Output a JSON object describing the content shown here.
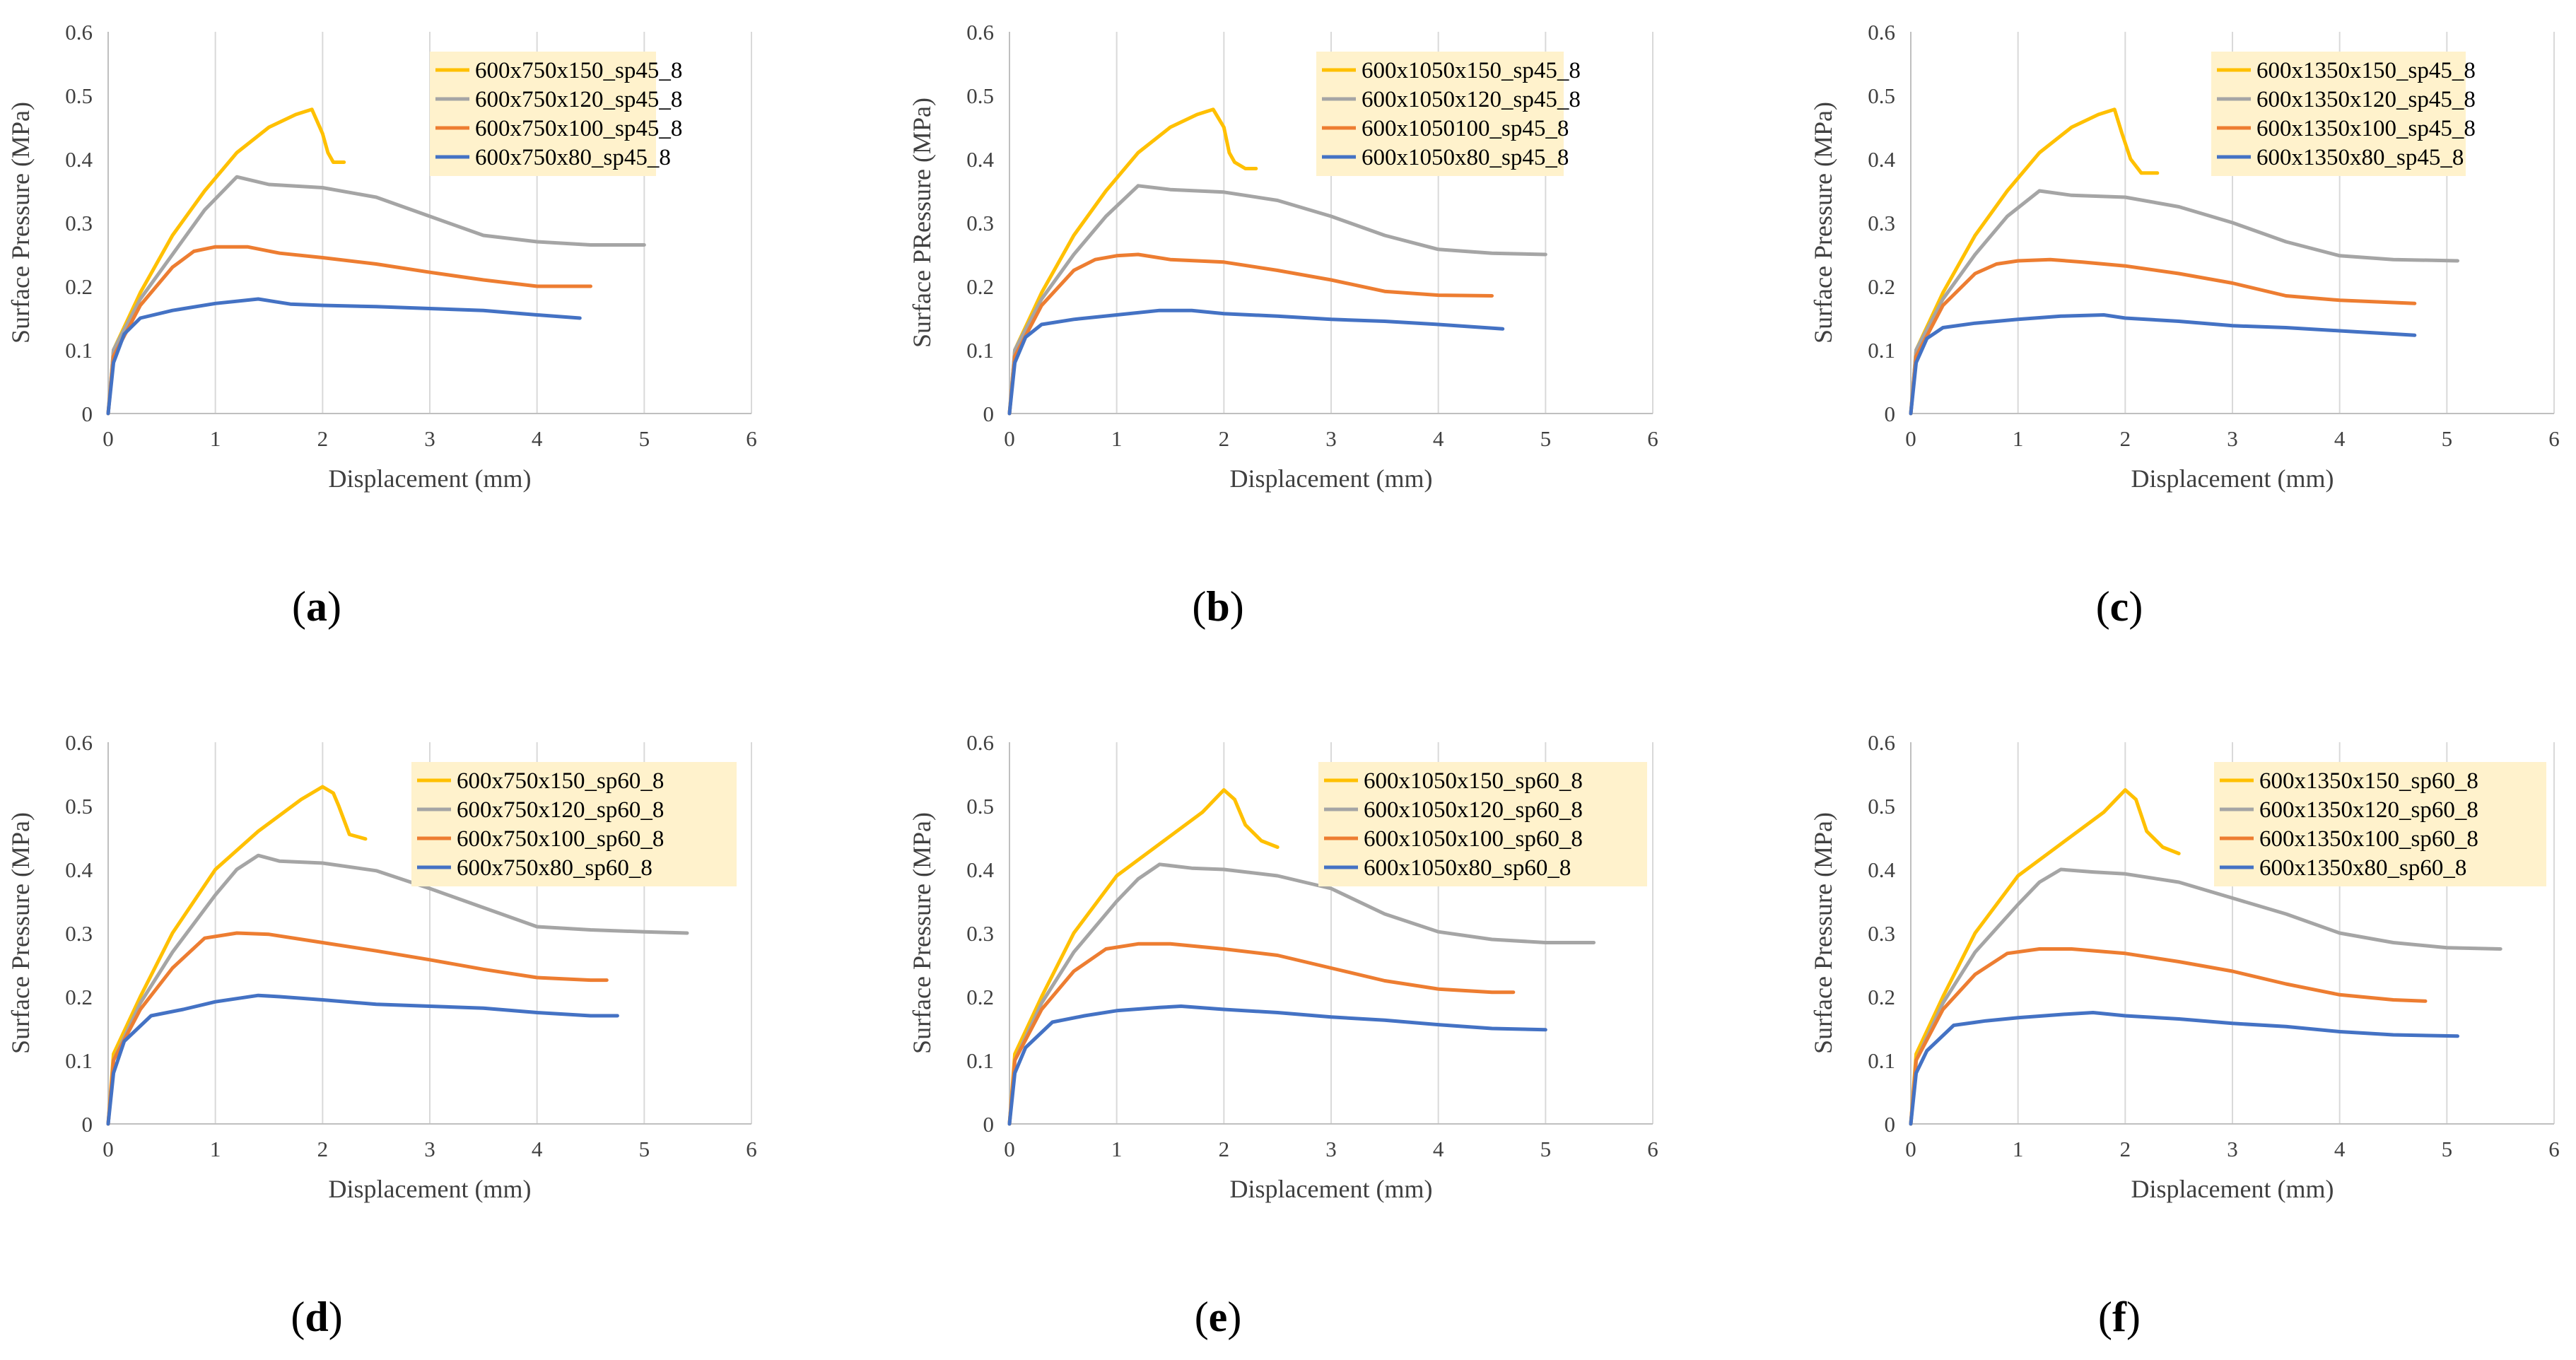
{
  "chart_data": [
    {
      "panel": "a",
      "type": "line",
      "xlabel": "Displacement (mm)",
      "ylabel": "Surface Pressure (MPa)",
      "xlim": [
        0,
        6
      ],
      "ylim": [
        0,
        0.6
      ],
      "xticks": [
        "0",
        "1",
        "2",
        "3",
        "4",
        "5",
        "6"
      ],
      "yticks": [
        "0",
        "0.1",
        "0.2",
        "0.3",
        "0.4",
        "0.5",
        "0.6"
      ],
      "grid": "vertical",
      "legend_position": "top-right",
      "series": [
        {
          "name": "600x750x150_sp45_8",
          "color": "#FFC000",
          "x": [
            0,
            0.05,
            0.3,
            0.6,
            0.9,
            1.2,
            1.5,
            1.75,
            1.9,
            2.0,
            2.05,
            2.1,
            2.2
          ],
          "y": [
            0,
            0.1,
            0.19,
            0.28,
            0.35,
            0.41,
            0.45,
            0.47,
            0.478,
            0.44,
            0.41,
            0.395,
            0.395
          ]
        },
        {
          "name": "600x750x120_sp45_8",
          "color": "#A5A5A5",
          "x": [
            0,
            0.05,
            0.3,
            0.6,
            0.9,
            1.2,
            1.5,
            2.0,
            2.5,
            3.0,
            3.5,
            4.0,
            4.5,
            5.0
          ],
          "y": [
            0,
            0.1,
            0.18,
            0.25,
            0.32,
            0.372,
            0.36,
            0.355,
            0.34,
            0.31,
            0.28,
            0.27,
            0.265,
            0.265
          ]
        },
        {
          "name": "600x750x100_sp45_8",
          "color": "#ED7D31",
          "x": [
            0,
            0.05,
            0.3,
            0.6,
            0.8,
            1.0,
            1.3,
            1.6,
            2.0,
            2.5,
            3.0,
            3.5,
            4.0,
            4.5
          ],
          "y": [
            0,
            0.09,
            0.17,
            0.23,
            0.255,
            0.262,
            0.262,
            0.252,
            0.245,
            0.235,
            0.222,
            0.21,
            0.2,
            0.2
          ]
        },
        {
          "name": "600x750x80_sp45_8",
          "color": "#4472C4",
          "x": [
            0,
            0.05,
            0.15,
            0.3,
            0.6,
            1.0,
            1.4,
            1.7,
            2.0,
            2.5,
            3.0,
            3.5,
            4.0,
            4.4
          ],
          "y": [
            0,
            0.08,
            0.125,
            0.15,
            0.162,
            0.173,
            0.18,
            0.172,
            0.17,
            0.168,
            0.165,
            0.162,
            0.155,
            0.15
          ]
        }
      ]
    },
    {
      "panel": "b",
      "type": "line",
      "xlabel": "Displacement (mm)",
      "ylabel": "Surface PRessure (MPa)",
      "xlim": [
        0,
        6
      ],
      "ylim": [
        0,
        0.6
      ],
      "xticks": [
        "0",
        "1",
        "2",
        "3",
        "4",
        "5",
        "6"
      ],
      "yticks": [
        "0",
        "0.1",
        "0.2",
        "0.3",
        "0.4",
        "0.5",
        "0.6"
      ],
      "grid": "vertical",
      "legend_position": "top-right",
      "series": [
        {
          "name": "600x1050x150_sp45_8",
          "color": "#FFC000",
          "x": [
            0,
            0.05,
            0.3,
            0.6,
            0.9,
            1.2,
            1.5,
            1.75,
            1.9,
            2.0,
            2.05,
            2.1,
            2.2,
            2.3
          ],
          "y": [
            0,
            0.1,
            0.19,
            0.28,
            0.35,
            0.41,
            0.45,
            0.47,
            0.478,
            0.45,
            0.41,
            0.395,
            0.385,
            0.385
          ]
        },
        {
          "name": "600x1050x120_sp45_8",
          "color": "#A5A5A5",
          "x": [
            0,
            0.05,
            0.3,
            0.6,
            0.9,
            1.2,
            1.5,
            2.0,
            2.5,
            3.0,
            3.5,
            4.0,
            4.5,
            5.0
          ],
          "y": [
            0,
            0.1,
            0.18,
            0.25,
            0.31,
            0.358,
            0.352,
            0.348,
            0.335,
            0.31,
            0.28,
            0.258,
            0.252,
            0.25
          ]
        },
        {
          "name": "600x1050100_sp45_8",
          "color": "#ED7D31",
          "x": [
            0,
            0.05,
            0.3,
            0.6,
            0.8,
            1.0,
            1.2,
            1.5,
            2.0,
            2.5,
            3.0,
            3.5,
            4.0,
            4.5
          ],
          "y": [
            0,
            0.09,
            0.17,
            0.225,
            0.242,
            0.248,
            0.25,
            0.242,
            0.238,
            0.225,
            0.21,
            0.192,
            0.186,
            0.185
          ]
        },
        {
          "name": "600x1050x80_sp45_8",
          "color": "#4472C4",
          "x": [
            0,
            0.05,
            0.15,
            0.3,
            0.6,
            1.0,
            1.4,
            1.7,
            2.0,
            2.5,
            3.0,
            3.5,
            4.0,
            4.6
          ],
          "y": [
            0,
            0.08,
            0.12,
            0.14,
            0.148,
            0.155,
            0.162,
            0.162,
            0.157,
            0.153,
            0.148,
            0.145,
            0.14,
            0.133
          ]
        }
      ]
    },
    {
      "panel": "c",
      "type": "line",
      "xlabel": "Displacement (mm)",
      "ylabel": "Surface Pressure (MPa)",
      "xlim": [
        0,
        6
      ],
      "ylim": [
        0,
        0.6
      ],
      "xticks": [
        "0",
        "1",
        "2",
        "3",
        "4",
        "5",
        "6"
      ],
      "yticks": [
        "0",
        "0.1",
        "0.2",
        "0.3",
        "0.4",
        "0.5",
        "0.6"
      ],
      "grid": "vertical",
      "legend_position": "top-right",
      "series": [
        {
          "name": "600x1350x150_sp45_8",
          "color": "#FFC000",
          "x": [
            0,
            0.05,
            0.3,
            0.6,
            0.9,
            1.2,
            1.5,
            1.75,
            1.9,
            1.97,
            2.05,
            2.15,
            2.3
          ],
          "y": [
            0,
            0.1,
            0.19,
            0.28,
            0.35,
            0.41,
            0.45,
            0.47,
            0.478,
            0.44,
            0.4,
            0.378,
            0.378
          ]
        },
        {
          "name": "600x1350x120_sp45_8",
          "color": "#A5A5A5",
          "x": [
            0,
            0.05,
            0.3,
            0.6,
            0.9,
            1.2,
            1.5,
            2.0,
            2.5,
            3.0,
            3.5,
            4.0,
            4.5,
            5.1
          ],
          "y": [
            0,
            0.1,
            0.18,
            0.25,
            0.31,
            0.35,
            0.343,
            0.34,
            0.325,
            0.3,
            0.27,
            0.248,
            0.242,
            0.24
          ]
        },
        {
          "name": "600x1350x100_sp45_8",
          "color": "#ED7D31",
          "x": [
            0,
            0.05,
            0.3,
            0.6,
            0.8,
            1.0,
            1.3,
            1.6,
            2.0,
            2.5,
            3.0,
            3.5,
            4.0,
            4.7
          ],
          "y": [
            0,
            0.09,
            0.17,
            0.22,
            0.235,
            0.24,
            0.242,
            0.238,
            0.232,
            0.22,
            0.205,
            0.185,
            0.178,
            0.173
          ]
        },
        {
          "name": "600x1350x80_sp45_8",
          "color": "#4472C4",
          "x": [
            0,
            0.05,
            0.15,
            0.3,
            0.6,
            1.0,
            1.4,
            1.8,
            2.0,
            2.5,
            3.0,
            3.5,
            4.0,
            4.7
          ],
          "y": [
            0,
            0.08,
            0.118,
            0.135,
            0.142,
            0.148,
            0.153,
            0.155,
            0.15,
            0.145,
            0.138,
            0.135,
            0.13,
            0.123
          ]
        }
      ]
    },
    {
      "panel": "d",
      "type": "line",
      "xlabel": "Displacement (mm)",
      "ylabel": "Surface Pressure (MPa)",
      "xlim": [
        0,
        6
      ],
      "ylim": [
        0,
        0.6
      ],
      "xticks": [
        "0",
        "1",
        "2",
        "3",
        "4",
        "5",
        "6"
      ],
      "yticks": [
        "0",
        "0.1",
        "0.2",
        "0.3",
        "0.4",
        "0.5",
        "0.6"
      ],
      "grid": "vertical",
      "legend_position": "top-right",
      "series": [
        {
          "name": "600x750x150_sp60_8",
          "color": "#FFC000",
          "x": [
            0,
            0.05,
            0.3,
            0.6,
            1.0,
            1.4,
            1.8,
            2.0,
            2.1,
            2.15,
            2.25,
            2.4
          ],
          "y": [
            0,
            0.11,
            0.2,
            0.3,
            0.4,
            0.46,
            0.51,
            0.53,
            0.52,
            0.5,
            0.455,
            0.448
          ]
        },
        {
          "name": "600x750x120_sp60_8",
          "color": "#A5A5A5",
          "x": [
            0,
            0.05,
            0.3,
            0.6,
            1.0,
            1.2,
            1.4,
            1.6,
            2.0,
            2.5,
            3.0,
            3.5,
            4.0,
            4.5,
            5.0,
            5.4
          ],
          "y": [
            0,
            0.1,
            0.19,
            0.27,
            0.36,
            0.4,
            0.422,
            0.413,
            0.41,
            0.398,
            0.37,
            0.34,
            0.31,
            0.305,
            0.302,
            0.3
          ]
        },
        {
          "name": "600x750x100_sp60_8",
          "color": "#ED7D31",
          "x": [
            0,
            0.05,
            0.3,
            0.6,
            0.9,
            1.2,
            1.5,
            2.0,
            2.5,
            3.0,
            3.5,
            4.0,
            4.5,
            4.65
          ],
          "y": [
            0,
            0.1,
            0.18,
            0.245,
            0.292,
            0.3,
            0.298,
            0.285,
            0.272,
            0.258,
            0.243,
            0.23,
            0.226,
            0.226
          ]
        },
        {
          "name": "600x750x80_sp60_8",
          "color": "#4472C4",
          "x": [
            0,
            0.05,
            0.15,
            0.4,
            0.7,
            1.0,
            1.4,
            1.6,
            2.0,
            2.5,
            3.0,
            3.5,
            4.0,
            4.5,
            4.75
          ],
          "y": [
            0,
            0.08,
            0.13,
            0.17,
            0.18,
            0.192,
            0.202,
            0.2,
            0.195,
            0.188,
            0.185,
            0.182,
            0.175,
            0.17,
            0.17
          ]
        }
      ]
    },
    {
      "panel": "e",
      "type": "line",
      "xlabel": "Displacement (mm)",
      "ylabel": "Surface Pressure (MPa)",
      "xlim": [
        0,
        6
      ],
      "ylim": [
        0,
        0.6
      ],
      "xticks": [
        "0",
        "1",
        "2",
        "3",
        "4",
        "5",
        "6"
      ],
      "yticks": [
        "0",
        "0.1",
        "0.2",
        "0.3",
        "0.4",
        "0.5",
        "0.6"
      ],
      "grid": "vertical",
      "legend_position": "top-right",
      "series": [
        {
          "name": "600x1050x150_sp60_8",
          "color": "#FFC000",
          "x": [
            0,
            0.05,
            0.3,
            0.6,
            1.0,
            1.4,
            1.8,
            2.0,
            2.1,
            2.2,
            2.35,
            2.5
          ],
          "y": [
            0,
            0.11,
            0.2,
            0.3,
            0.39,
            0.44,
            0.49,
            0.525,
            0.51,
            0.47,
            0.445,
            0.435
          ]
        },
        {
          "name": "600x1050x120_sp60_8",
          "color": "#A5A5A5",
          "x": [
            0,
            0.05,
            0.3,
            0.6,
            1.0,
            1.2,
            1.4,
            1.7,
            2.0,
            2.5,
            3.0,
            3.5,
            4.0,
            4.5,
            5.0,
            5.45
          ],
          "y": [
            0,
            0.1,
            0.19,
            0.27,
            0.35,
            0.385,
            0.408,
            0.402,
            0.4,
            0.39,
            0.37,
            0.33,
            0.302,
            0.29,
            0.285,
            0.285
          ]
        },
        {
          "name": "600x1050x100_sp60_8",
          "color": "#ED7D31",
          "x": [
            0,
            0.05,
            0.3,
            0.6,
            0.9,
            1.2,
            1.5,
            2.0,
            2.5,
            3.0,
            3.5,
            4.0,
            4.5,
            4.7
          ],
          "y": [
            0,
            0.1,
            0.18,
            0.24,
            0.275,
            0.283,
            0.283,
            0.275,
            0.265,
            0.245,
            0.225,
            0.212,
            0.207,
            0.207
          ]
        },
        {
          "name": "600x1050x80_sp60_8",
          "color": "#4472C4",
          "x": [
            0,
            0.05,
            0.15,
            0.4,
            0.7,
            1.0,
            1.4,
            1.6,
            2.0,
            2.5,
            3.0,
            3.5,
            4.0,
            4.5,
            5.0
          ],
          "y": [
            0,
            0.08,
            0.12,
            0.16,
            0.17,
            0.178,
            0.183,
            0.185,
            0.18,
            0.175,
            0.168,
            0.163,
            0.156,
            0.15,
            0.148
          ]
        }
      ]
    },
    {
      "panel": "f",
      "type": "line",
      "xlabel": "Displacement (mm)",
      "ylabel": "Surface Pressure (MPa)",
      "xlim": [
        0,
        6
      ],
      "ylim": [
        0,
        0.6
      ],
      "xticks": [
        "0",
        "1",
        "2",
        "3",
        "4",
        "5",
        "6"
      ],
      "yticks": [
        "0",
        "0.1",
        "0.2",
        "0.3",
        "0.4",
        "0.5",
        "0.6"
      ],
      "grid": "vertical",
      "legend_position": "top-right",
      "series": [
        {
          "name": "600x1350x150_sp60_8",
          "color": "#FFC000",
          "x": [
            0,
            0.05,
            0.3,
            0.6,
            1.0,
            1.4,
            1.8,
            2.0,
            2.1,
            2.2,
            2.35,
            2.5
          ],
          "y": [
            0,
            0.11,
            0.2,
            0.3,
            0.39,
            0.44,
            0.49,
            0.525,
            0.51,
            0.46,
            0.435,
            0.425
          ]
        },
        {
          "name": "600x1350x120_sp60_8",
          "color": "#A5A5A5",
          "x": [
            0,
            0.05,
            0.3,
            0.6,
            1.0,
            1.2,
            1.4,
            1.7,
            2.0,
            2.5,
            3.0,
            3.5,
            4.0,
            4.5,
            5.0,
            5.5
          ],
          "y": [
            0,
            0.1,
            0.19,
            0.27,
            0.345,
            0.38,
            0.4,
            0.396,
            0.393,
            0.38,
            0.355,
            0.33,
            0.3,
            0.285,
            0.277,
            0.275
          ]
        },
        {
          "name": "600x1350x100_sp60_8",
          "color": "#ED7D31",
          "x": [
            0,
            0.05,
            0.3,
            0.6,
            0.9,
            1.2,
            1.5,
            2.0,
            2.5,
            3.0,
            3.5,
            4.0,
            4.5,
            4.8
          ],
          "y": [
            0,
            0.1,
            0.18,
            0.235,
            0.268,
            0.275,
            0.275,
            0.268,
            0.255,
            0.24,
            0.22,
            0.203,
            0.195,
            0.193
          ]
        },
        {
          "name": "600x1350x80_sp60_8",
          "color": "#4472C4",
          "x": [
            0,
            0.05,
            0.15,
            0.4,
            0.7,
            1.0,
            1.4,
            1.7,
            2.0,
            2.5,
            3.0,
            3.5,
            4.0,
            4.5,
            5.1
          ],
          "y": [
            0,
            0.08,
            0.115,
            0.155,
            0.162,
            0.167,
            0.172,
            0.175,
            0.17,
            0.165,
            0.158,
            0.153,
            0.145,
            0.14,
            0.138
          ]
        }
      ]
    }
  ],
  "captions": [
    "(a)",
    "(b)",
    "(c)",
    "(d)",
    "(e)",
    "(f)"
  ],
  "caption_letters": [
    "a",
    "b",
    "c",
    "d",
    "e",
    "f"
  ]
}
